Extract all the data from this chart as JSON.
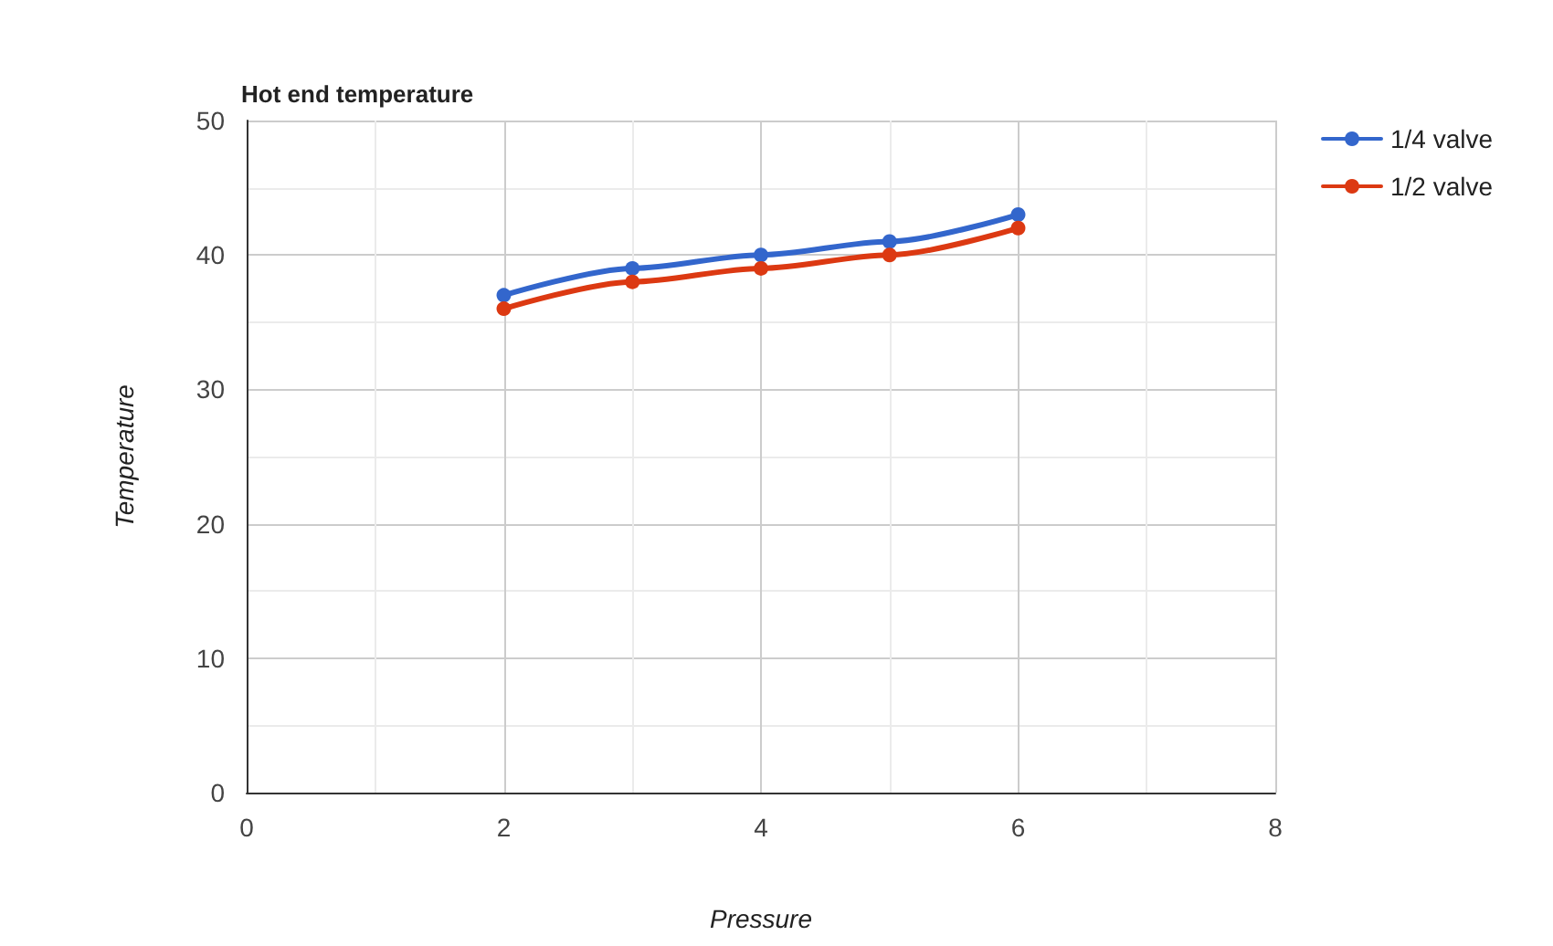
{
  "chart_data": {
    "type": "line",
    "title": "Hot end temperature",
    "xlabel": "Pressure",
    "ylabel": "Temperature",
    "x": [
      2,
      3,
      4,
      5,
      6
    ],
    "series": [
      {
        "name": "1/4 valve",
        "color": "#3366cc",
        "values": [
          37,
          39,
          40,
          41,
          43
        ]
      },
      {
        "name": "1/2 valve",
        "color": "#dc3912",
        "values": [
          36,
          38,
          39,
          40,
          42
        ]
      }
    ],
    "xlim": [
      0,
      8
    ],
    "xticks": [
      0,
      2,
      4,
      6,
      8
    ],
    "ylim": [
      0,
      50
    ],
    "yticks": [
      0,
      10,
      20,
      30,
      40,
      50
    ],
    "grid": true,
    "legend": "top right",
    "marker": "circle",
    "line_style": "solid"
  }
}
